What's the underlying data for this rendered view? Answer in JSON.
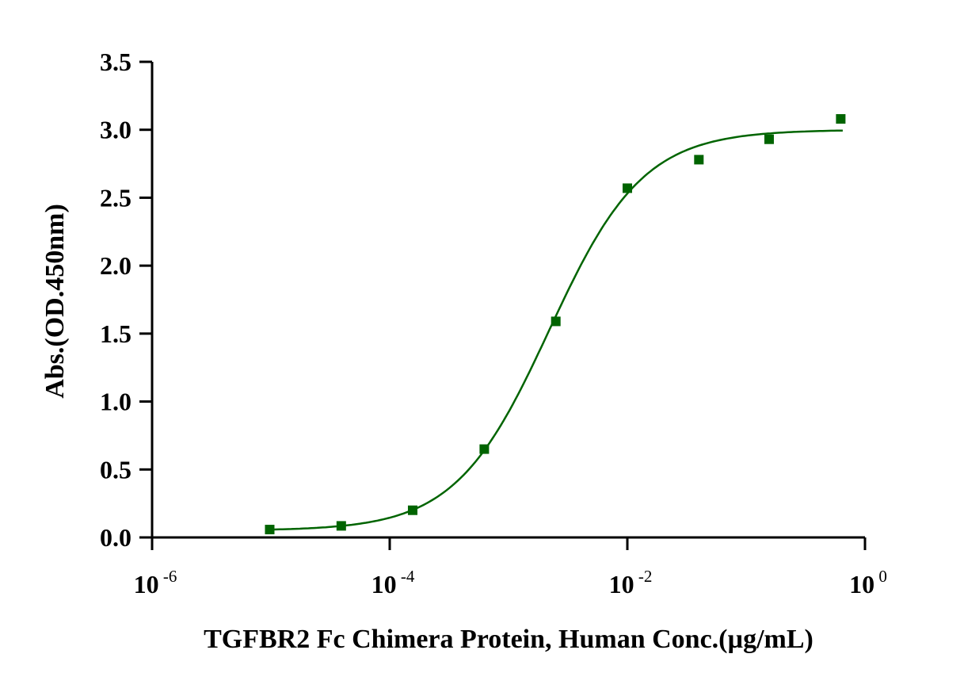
{
  "chart_data": {
    "type": "scatter",
    "title": "",
    "xlabel": "TGFBR2 Fc Chimera Protein, Human Conc.(µg/mL)",
    "ylabel": "Abs.(OD.450nm)",
    "xscale": "log",
    "xlim": [
      1e-06,
      1
    ],
    "ylim": [
      0,
      3.5
    ],
    "x_ticks": [
      {
        "base": "10",
        "exp": "-6",
        "value": 1e-06
      },
      {
        "base": "10",
        "exp": "-4",
        "value": 0.0001
      },
      {
        "base": "10",
        "exp": "-2",
        "value": 0.01
      },
      {
        "base": "10",
        "exp": "0",
        "value": 1
      }
    ],
    "y_ticks": [
      "0.0",
      "0.5",
      "1.0",
      "1.5",
      "2.0",
      "2.5",
      "3.0",
      "3.5"
    ],
    "grid": false,
    "color": "#006400",
    "series": [
      {
        "name": "TGFBR2 Fc Chimera Protein, Human",
        "marker": "square",
        "x": [
          9.77e-06,
          3.91e-05,
          0.000156,
          0.000625,
          0.0025,
          0.01,
          0.04,
          0.156,
          0.625
        ],
        "y": [
          0.058,
          0.085,
          0.2,
          0.65,
          1.59,
          2.57,
          2.78,
          2.93,
          3.08
        ]
      }
    ],
    "fit": {
      "model": "4PL",
      "bottom": 0.05,
      "top": 3.0,
      "ec50": 0.0022,
      "hill": 1.1,
      "x_range": [
        9.5e-06,
        0.65
      ]
    }
  }
}
